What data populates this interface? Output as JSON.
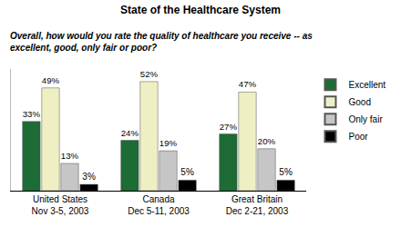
{
  "chart_data": {
    "type": "bar",
    "title": "State of the Healthcare System",
    "subtitle": "Overall, how would you rate the quality of healthcare you receive -- as\nexcellent, good, only fair or poor?",
    "categories": [
      "United States\nNov 3-5, 2003",
      "Canada\nDec 5-11, 2003",
      "Great Britain\nDec 2-21, 2003"
    ],
    "series": [
      {
        "name": "Excellent",
        "color": "#1d6b35",
        "values": [
          33,
          24,
          27
        ],
        "value_labels": [
          "33%",
          "24%",
          "27%"
        ]
      },
      {
        "name": "Good",
        "color": "#efefc4",
        "values": [
          49,
          52,
          47
        ],
        "value_labels": [
          "49%",
          "52%",
          "47%"
        ]
      },
      {
        "name": "Only fair",
        "color": "#c6c6c6",
        "values": [
          13,
          19,
          20
        ],
        "value_labels": [
          "13%",
          "19%",
          "20%"
        ]
      },
      {
        "name": "Poor",
        "color": "#000000",
        "values": [
          3,
          5,
          5
        ],
        "value_labels": [
          "3%",
          "5%",
          "5%"
        ]
      }
    ],
    "ylim": [
      0,
      58
    ],
    "data_labels": true,
    "legend": "right",
    "tick_labels": "x",
    "grid": false
  }
}
